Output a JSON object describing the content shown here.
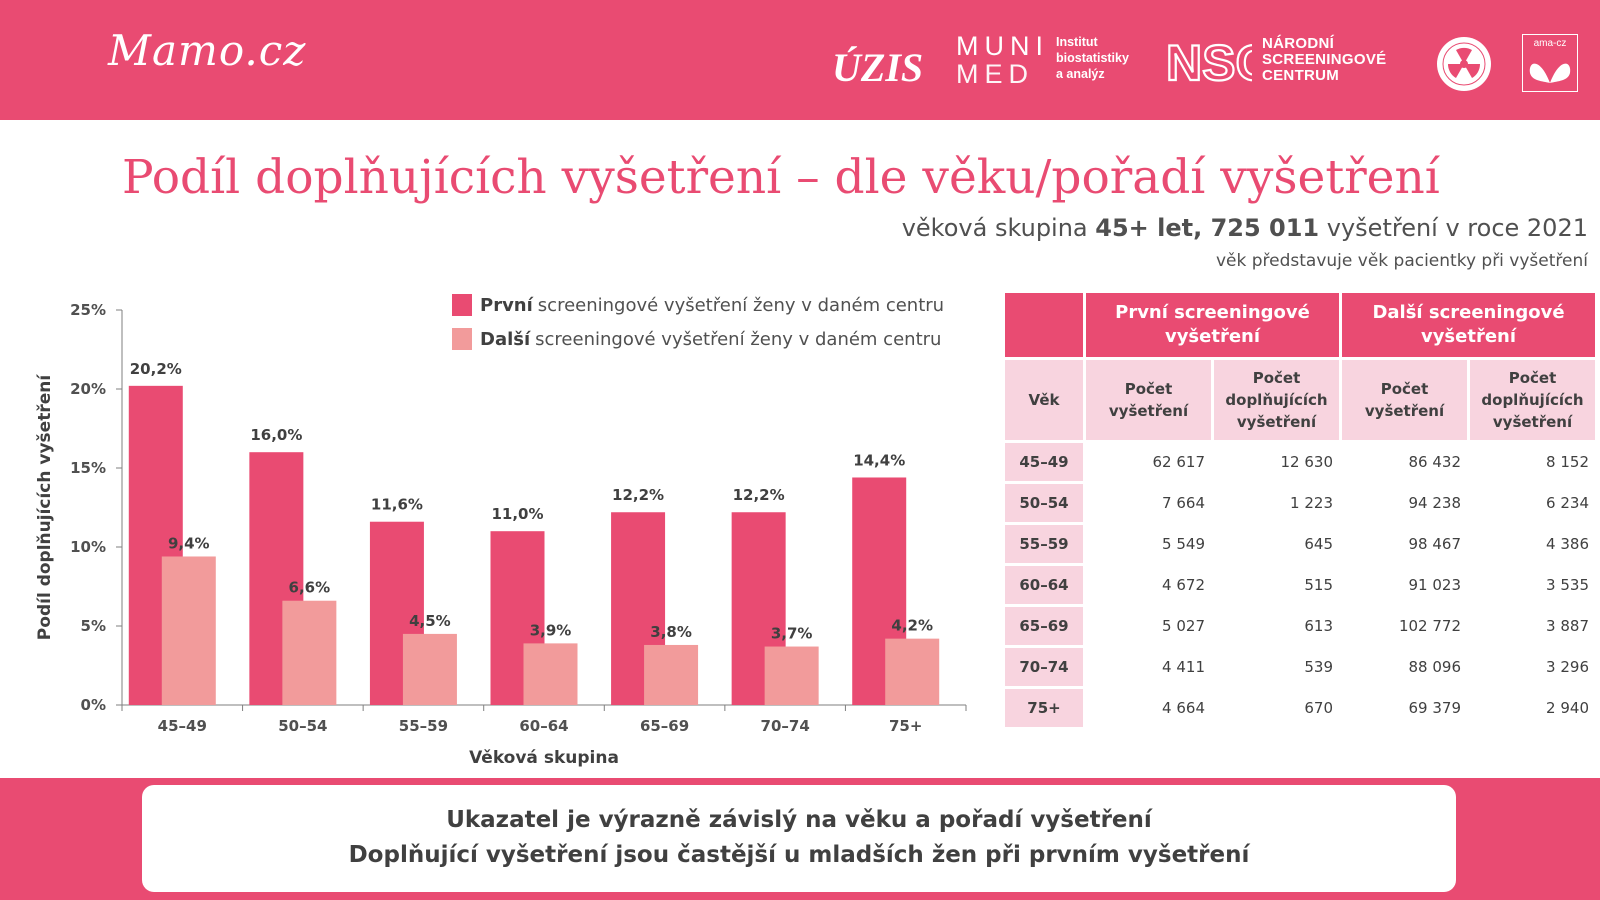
{
  "header": {
    "brand": "Mamo.cz",
    "logos": {
      "uzis": "ÚZIS",
      "muni_line1": "MUNI",
      "muni_line2": "MED",
      "institute": [
        "Institut",
        "biostatistiky",
        "a analýz"
      ],
      "nsc_mark": "NSC",
      "nsc_text": [
        "NÁRODNÍ",
        "SCREENINGOVÉ",
        "CENTRUM"
      ],
      "ama": "ama-cz"
    }
  },
  "title": "Podíl doplňujících vyšetření – dle věku/pořadí vyšetření",
  "subtitle": {
    "prefix": "věková skupina ",
    "bold": "45+ let, 725 011",
    "suffix": " vyšetření v roce 2021"
  },
  "note": "věk představuje věk pacientky při vyšetření",
  "legend": [
    {
      "bold": "První",
      "text": "screeningové vyšetření ženy v daném centru",
      "color": "#e94b72"
    },
    {
      "bold": "Další",
      "text": "screeningové vyšetření ženy v daném centru",
      "color": "#f29b9b"
    }
  ],
  "chart_data": {
    "type": "bar",
    "categories": [
      "45–49",
      "50–54",
      "55–59",
      "60–64",
      "65–69",
      "70–74",
      "75+"
    ],
    "series": [
      {
        "name": "První",
        "values": [
          20.2,
          16.0,
          11.6,
          11.0,
          12.2,
          12.2,
          14.4
        ],
        "labels": [
          "20,2%",
          "16,0%",
          "11,6%",
          "11,0%",
          "12,2%",
          "12,2%",
          "14,4%"
        ],
        "color": "#e94b72"
      },
      {
        "name": "Další",
        "values": [
          9.4,
          6.6,
          4.5,
          3.9,
          3.8,
          3.7,
          4.2
        ],
        "labels": [
          "9,4%",
          "6,6%",
          "4,5%",
          "3,9%",
          "3,8%",
          "3,7%",
          "4,2%"
        ],
        "color": "#f29b9b"
      }
    ],
    "xlabel": "Věková skupina",
    "ylabel": "Podíl doplňujících vyšetření",
    "ylim": [
      0,
      25
    ],
    "yticks": [
      0,
      5,
      10,
      15,
      20,
      25
    ],
    "ytick_labels": [
      "0%",
      "5%",
      "10%",
      "15%",
      "20%",
      "25%"
    ],
    "grid": false,
    "legend_position": "top-right"
  },
  "table": {
    "group_headers": [
      "První screeningové vyšetření",
      "Další screeningové vyšetření"
    ],
    "age_header": "Věk",
    "sub_headers": [
      "Počet vyšetření",
      "Počet doplňujících vyšetření",
      "Počet vyšetření",
      "Počet doplňujících vyšetření"
    ],
    "rows": [
      {
        "age": "45–49",
        "values": [
          "62 617",
          "12 630",
          "86 432",
          "8 152"
        ]
      },
      {
        "age": "50–54",
        "values": [
          "7 664",
          "1 223",
          "94 238",
          "6 234"
        ]
      },
      {
        "age": "55–59",
        "values": [
          "5 549",
          "645",
          "98 467",
          "4 386"
        ]
      },
      {
        "age": "60–64",
        "values": [
          "4 672",
          "515",
          "91 023",
          "3 535"
        ]
      },
      {
        "age": "65–69",
        "values": [
          "5 027",
          "613",
          "102 772",
          "3 887"
        ]
      },
      {
        "age": "70–74",
        "values": [
          "4 411",
          "539",
          "88 096",
          "3 296"
        ]
      },
      {
        "age": "75+",
        "values": [
          "4 664",
          "670",
          "69 379",
          "2 940"
        ]
      }
    ]
  },
  "footer": {
    "line1": "Ukazatel je výrazně závislý na věku a pořadí vyšetření",
    "line2": "Doplňující vyšetření jsou častější u mladších žen při prvním vyšetření"
  },
  "colors": {
    "accent": "#e94b72",
    "accent_light": "#f29b9b",
    "table_light": "#f8d4df"
  }
}
